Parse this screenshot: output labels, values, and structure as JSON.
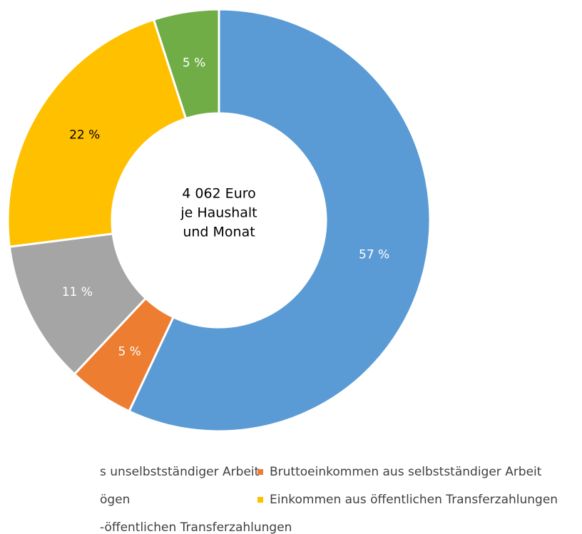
{
  "chart_data": {
    "type": "pie",
    "categories": [
      "s unselbstständiger Arbeit",
      "Bruttoeinkommen aus selbstständiger Arbeit",
      "ögen",
      "Einkommen aus öffentlichen Transferzahlungen",
      "-öffentlichen Transferzahlungen"
    ],
    "values": [
      57,
      5,
      11,
      22,
      5
    ],
    "value_labels": [
      "57 %",
      "5 %",
      "11 %",
      "22 %",
      "5 %"
    ],
    "colors": [
      "#5b9bd5",
      "#ed7d31",
      "#a5a5a5",
      "#ffc000",
      "#70ad47"
    ],
    "center_label": [
      "4 062 Euro",
      "je Haushalt",
      "und Monat"
    ]
  }
}
